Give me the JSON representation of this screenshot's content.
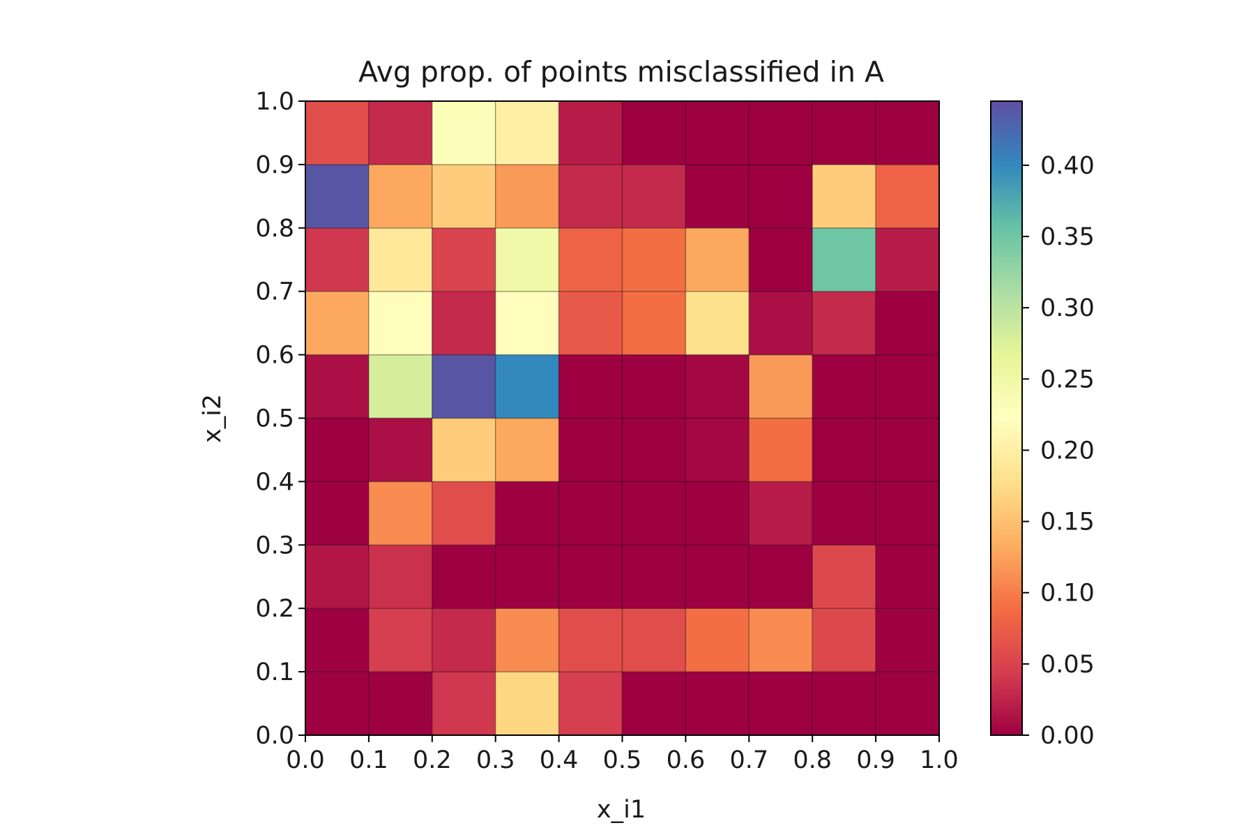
{
  "chart_data": {
    "type": "heatmap",
    "title": "Avg prop. of points misclassified in A",
    "xlabel": "x_i1",
    "ylabel": "x_i2",
    "xlim": [
      0.0,
      1.0
    ],
    "ylim": [
      0.0,
      1.0
    ],
    "x_ticks": [
      "0.0",
      "0.1",
      "0.2",
      "0.3",
      "0.4",
      "0.5",
      "0.6",
      "0.7",
      "0.8",
      "0.9",
      "1.0"
    ],
    "y_ticks": [
      "0.0",
      "0.1",
      "0.2",
      "0.3",
      "0.4",
      "0.5",
      "0.6",
      "0.7",
      "0.8",
      "0.9",
      "1.0"
    ],
    "colormap": "Spectral",
    "colorbar": {
      "vmin": 0.0,
      "vmax": 0.445,
      "ticks": [
        0.0,
        0.05,
        0.1,
        0.15,
        0.2,
        0.25,
        0.3,
        0.35,
        0.4
      ],
      "tick_labels": [
        "0.00",
        "0.05",
        "0.10",
        "0.15",
        "0.20",
        "0.25",
        "0.30",
        "0.35",
        "0.40"
      ]
    },
    "x_bins": [
      [
        0.0,
        0.1
      ],
      [
        0.1,
        0.2
      ],
      [
        0.2,
        0.3
      ],
      [
        0.3,
        0.4
      ],
      [
        0.4,
        0.5
      ],
      [
        0.5,
        0.6
      ],
      [
        0.6,
        0.7
      ],
      [
        0.7,
        0.8
      ],
      [
        0.8,
        0.9
      ],
      [
        0.9,
        1.0
      ]
    ],
    "y_bins": [
      [
        0.0,
        0.1
      ],
      [
        0.1,
        0.2
      ],
      [
        0.2,
        0.3
      ],
      [
        0.3,
        0.4
      ],
      [
        0.4,
        0.5
      ],
      [
        0.5,
        0.6
      ],
      [
        0.6,
        0.7
      ],
      [
        0.7,
        0.8
      ],
      [
        0.8,
        0.9
      ],
      [
        0.9,
        1.0
      ]
    ],
    "values": [
      [
        0.0,
        0.0,
        0.04,
        0.17,
        0.045,
        0.0,
        0.0,
        0.0,
        0.0,
        0.0
      ],
      [
        0.0,
        0.045,
        0.03,
        0.11,
        0.06,
        0.06,
        0.09,
        0.11,
        0.055,
        0.0
      ],
      [
        0.015,
        0.035,
        0.0,
        0.0,
        0.0,
        0.0,
        0.0,
        0.0,
        0.055,
        0.0
      ],
      [
        0.0,
        0.11,
        0.06,
        0.0,
        0.0,
        0.0,
        0.0,
        0.02,
        0.0,
        0.0
      ],
      [
        0.0,
        0.01,
        0.16,
        0.13,
        0.0,
        0.0,
        0.005,
        0.09,
        0.0,
        0.0
      ],
      [
        0.01,
        0.28,
        0.44,
        0.4,
        0.0,
        0.0,
        0.005,
        0.12,
        0.0,
        0.0
      ],
      [
        0.13,
        0.22,
        0.03,
        0.22,
        0.07,
        0.09,
        0.18,
        0.01,
        0.03,
        0.0
      ],
      [
        0.04,
        0.19,
        0.05,
        0.25,
        0.08,
        0.09,
        0.13,
        0.0,
        0.35,
        0.02
      ],
      [
        0.44,
        0.13,
        0.16,
        0.12,
        0.03,
        0.03,
        0.0,
        0.0,
        0.16,
        0.08
      ],
      [
        0.06,
        0.03,
        0.23,
        0.2,
        0.02,
        0.0,
        0.0,
        0.0,
        0.0,
        0.0
      ]
    ]
  }
}
